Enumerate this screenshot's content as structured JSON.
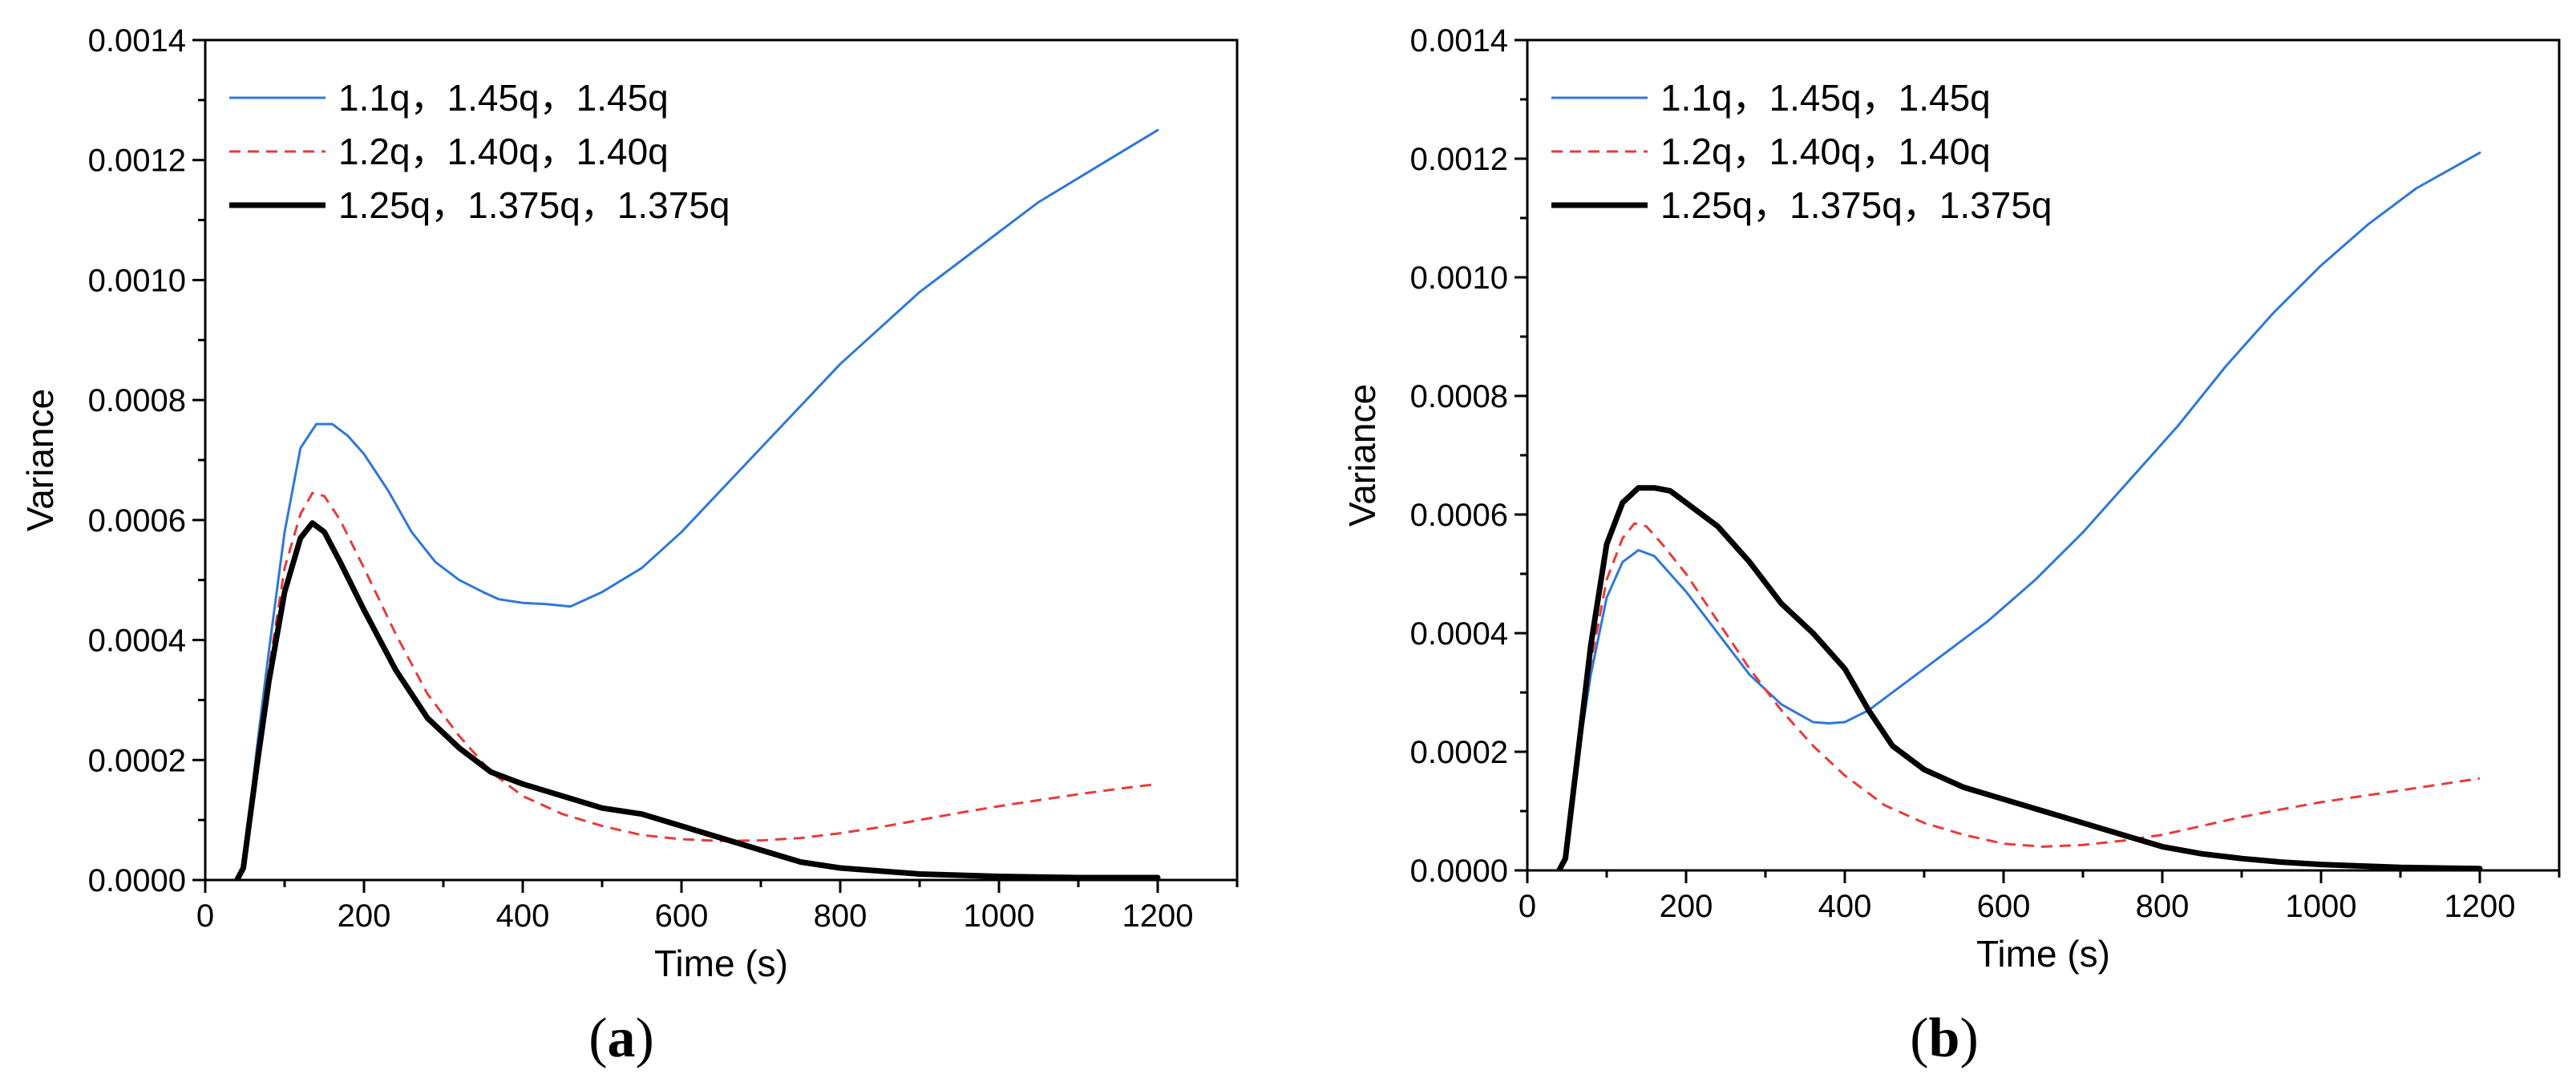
{
  "chart_data": [
    {
      "type": "line",
      "panel_label": "a",
      "caption_open": "(",
      "caption_close": ")",
      "xlabel": "Time (s)",
      "ylabel": "Variance",
      "xlim": [
        0,
        1300
      ],
      "ylim": [
        0,
        0.0014
      ],
      "xticks": [
        0,
        200,
        400,
        600,
        800,
        1000,
        1200
      ],
      "xtick_labels": [
        "0",
        "200",
        "400",
        "600",
        "800",
        "1000",
        "1200"
      ],
      "yticks": [
        0,
        0.0002,
        0.0004,
        0.0006,
        0.0008,
        0.001,
        0.0012,
        0.0014
      ],
      "ytick_labels": [
        "0.0000",
        "0.0002",
        "0.0004",
        "0.0006",
        "0.0008",
        "0.0010",
        "0.0012",
        "0.0014"
      ],
      "legend_position": "top-left",
      "series": [
        {
          "name": "1.1q，1.45q，1.45q",
          "color": "#2f78d6",
          "style": "solid",
          "weight": "thin",
          "points": [
            [
              40,
              0
            ],
            [
              48,
              2e-05
            ],
            [
              55,
              0.0001
            ],
            [
              65,
              0.00022
            ],
            [
              80,
              0.00038
            ],
            [
              100,
              0.00058
            ],
            [
              120,
              0.00072
            ],
            [
              140,
              0.00076
            ],
            [
              160,
              0.00076
            ],
            [
              180,
              0.00074
            ],
            [
              200,
              0.00071
            ],
            [
              230,
              0.00065
            ],
            [
              260,
              0.00058
            ],
            [
              290,
              0.00053
            ],
            [
              320,
              0.0005
            ],
            [
              350,
              0.00048
            ],
            [
              370,
              0.000468
            ],
            [
              400,
              0.000462
            ],
            [
              430,
              0.00046
            ],
            [
              460,
              0.000456
            ],
            [
              500,
              0.00048
            ],
            [
              550,
              0.00052
            ],
            [
              600,
              0.00058
            ],
            [
              650,
              0.00065
            ],
            [
              700,
              0.00072
            ],
            [
              750,
              0.00079
            ],
            [
              800,
              0.00086
            ],
            [
              850,
              0.00092
            ],
            [
              900,
              0.00098
            ],
            [
              950,
              0.00103
            ],
            [
              1000,
              0.00108
            ],
            [
              1050,
              0.00113
            ],
            [
              1100,
              0.00117
            ],
            [
              1150,
              0.00121
            ],
            [
              1200,
              0.00125
            ]
          ]
        },
        {
          "name": "1.2q，1.40q，1.40q",
          "color": "#e83a3a",
          "style": "dashed",
          "weight": "thin",
          "points": [
            [
              40,
              0
            ],
            [
              48,
              2e-05
            ],
            [
              55,
              0.0001
            ],
            [
              65,
              0.0002
            ],
            [
              80,
              0.00035
            ],
            [
              100,
              0.00052
            ],
            [
              120,
              0.00061
            ],
            [
              135,
              0.000645
            ],
            [
              150,
              0.00064
            ],
            [
              170,
              0.0006
            ],
            [
              200,
              0.00052
            ],
            [
              240,
              0.00041
            ],
            [
              280,
              0.00031
            ],
            [
              320,
              0.00024
            ],
            [
              360,
              0.00018
            ],
            [
              400,
              0.00014
            ],
            [
              450,
              0.00011
            ],
            [
              500,
              9e-05
            ],
            [
              550,
              7.5e-05
            ],
            [
              600,
              6.8e-05
            ],
            [
              650,
              6.5e-05
            ],
            [
              700,
              6.6e-05
            ],
            [
              750,
              7e-05
            ],
            [
              800,
              7.8e-05
            ],
            [
              850,
              8.8e-05
            ],
            [
              900,
              0.0001
            ],
            [
              950,
              0.000112
            ],
            [
              1000,
              0.000123
            ],
            [
              1050,
              0.000133
            ],
            [
              1100,
              0.000143
            ],
            [
              1150,
              0.000152
            ],
            [
              1200,
              0.00016
            ]
          ]
        },
        {
          "name": "1.25q，1.375q，1.375q",
          "color": "#000000",
          "style": "solid",
          "weight": "thick",
          "points": [
            [
              40,
              0
            ],
            [
              48,
              2e-05
            ],
            [
              55,
              9e-05
            ],
            [
              65,
              0.00019
            ],
            [
              80,
              0.00033
            ],
            [
              100,
              0.00048
            ],
            [
              120,
              0.00057
            ],
            [
              135,
              0.000595
            ],
            [
              150,
              0.00058
            ],
            [
              170,
              0.00053
            ],
            [
              200,
              0.00045
            ],
            [
              240,
              0.00035
            ],
            [
              280,
              0.00027
            ],
            [
              320,
              0.00022
            ],
            [
              360,
              0.00018
            ],
            [
              400,
              0.00016
            ],
            [
              450,
              0.00014
            ],
            [
              500,
              0.00012
            ],
            [
              550,
              0.00011
            ],
            [
              600,
              9e-05
            ],
            [
              650,
              7e-05
            ],
            [
              700,
              5e-05
            ],
            [
              750,
              3e-05
            ],
            [
              800,
              2e-05
            ],
            [
              850,
              1.5e-05
            ],
            [
              900,
              1e-05
            ],
            [
              950,
              8e-06
            ],
            [
              1000,
              6e-06
            ],
            [
              1100,
              4e-06
            ],
            [
              1200,
              4e-06
            ]
          ]
        }
      ]
    },
    {
      "type": "line",
      "panel_label": "b",
      "caption_open": "(",
      "caption_close": ")",
      "xlabel": "Time (s)",
      "ylabel": "Variance",
      "xlim": [
        0,
        1300
      ],
      "ylim": [
        0,
        0.0014
      ],
      "xticks": [
        0,
        200,
        400,
        600,
        800,
        1000,
        1200
      ],
      "xtick_labels": [
        "0",
        "200",
        "400",
        "600",
        "800",
        "1000",
        "1200"
      ],
      "yticks": [
        0,
        0.0002,
        0.0004,
        0.0006,
        0.0008,
        0.001,
        0.0012,
        0.0014
      ],
      "ytick_labels": [
        "0.0000",
        "0.0002",
        "0.0004",
        "0.0006",
        "0.0008",
        "0.0010",
        "0.0012",
        "0.0014"
      ],
      "legend_position": "top-left",
      "series": [
        {
          "name": "1.1q，1.45q，1.45q",
          "color": "#2f78d6",
          "style": "solid",
          "weight": "thin",
          "points": [
            [
              40,
              0
            ],
            [
              48,
              2e-05
            ],
            [
              55,
              0.0001
            ],
            [
              65,
              0.0002
            ],
            [
              80,
              0.00033
            ],
            [
              100,
              0.00046
            ],
            [
              120,
              0.00052
            ],
            [
              140,
              0.00054
            ],
            [
              160,
              0.00053
            ],
            [
              180,
              0.0005
            ],
            [
              200,
              0.00047
            ],
            [
              240,
              0.0004
            ],
            [
              280,
              0.00033
            ],
            [
              320,
              0.00028
            ],
            [
              360,
              0.00025
            ],
            [
              380,
              0.000248
            ],
            [
              400,
              0.00025
            ],
            [
              430,
              0.00027
            ],
            [
              470,
              0.00031
            ],
            [
              520,
              0.00036
            ],
            [
              580,
              0.00042
            ],
            [
              640,
              0.00049
            ],
            [
              700,
              0.00057
            ],
            [
              760,
              0.00066
            ],
            [
              820,
              0.00075
            ],
            [
              880,
              0.00085
            ],
            [
              940,
              0.00094
            ],
            [
              1000,
              0.00102
            ],
            [
              1060,
              0.00109
            ],
            [
              1120,
              0.00115
            ],
            [
              1160,
              0.00118
            ],
            [
              1200,
              0.00121
            ]
          ]
        },
        {
          "name": "1.2q，1.40q，1.40q",
          "color": "#e83a3a",
          "style": "dashed",
          "weight": "thin",
          "points": [
            [
              40,
              0
            ],
            [
              48,
              2e-05
            ],
            [
              55,
              0.0001
            ],
            [
              65,
              0.0002
            ],
            [
              80,
              0.00035
            ],
            [
              100,
              0.00049
            ],
            [
              120,
              0.00056
            ],
            [
              135,
              0.000585
            ],
            [
              150,
              0.00058
            ],
            [
              170,
              0.00055
            ],
            [
              200,
              0.0005
            ],
            [
              240,
              0.00042
            ],
            [
              280,
              0.00034
            ],
            [
              320,
              0.00027
            ],
            [
              360,
              0.00021
            ],
            [
              400,
              0.00016
            ],
            [
              450,
              0.00011
            ],
            [
              500,
              8e-05
            ],
            [
              550,
              6e-05
            ],
            [
              600,
              4.5e-05
            ],
            [
              650,
              4e-05
            ],
            [
              700,
              4.3e-05
            ],
            [
              750,
              5e-05
            ],
            [
              800,
              6e-05
            ],
            [
              850,
              7.5e-05
            ],
            [
              900,
              9e-05
            ],
            [
              950,
              0.000103
            ],
            [
              1000,
              0.000115
            ],
            [
              1050,
              0.000125
            ],
            [
              1100,
              0.000135
            ],
            [
              1150,
              0.000145
            ],
            [
              1200,
              0.000155
            ]
          ]
        },
        {
          "name": "1.25q，1.375q，1.375q",
          "color": "#000000",
          "style": "solid",
          "weight": "thick",
          "points": [
            [
              40,
              0
            ],
            [
              48,
              2e-05
            ],
            [
              55,
              0.0001
            ],
            [
              65,
              0.00021
            ],
            [
              80,
              0.00038
            ],
            [
              100,
              0.00055
            ],
            [
              120,
              0.00062
            ],
            [
              140,
              0.000645
            ],
            [
              160,
              0.000645
            ],
            [
              180,
              0.00064
            ],
            [
              200,
              0.00062
            ],
            [
              240,
              0.00058
            ],
            [
              280,
              0.00052
            ],
            [
              320,
              0.00045
            ],
            [
              360,
              0.0004
            ],
            [
              400,
              0.00034
            ],
            [
              430,
              0.00027
            ],
            [
              460,
              0.00021
            ],
            [
              500,
              0.00017
            ],
            [
              550,
              0.00014
            ],
            [
              600,
              0.00012
            ],
            [
              650,
              0.0001
            ],
            [
              700,
              8e-05
            ],
            [
              750,
              6e-05
            ],
            [
              800,
              4e-05
            ],
            [
              850,
              2.8e-05
            ],
            [
              900,
              2e-05
            ],
            [
              950,
              1.4e-05
            ],
            [
              1000,
              1e-05
            ],
            [
              1100,
              5e-06
            ],
            [
              1200,
              3e-06
            ]
          ]
        }
      ]
    }
  ]
}
